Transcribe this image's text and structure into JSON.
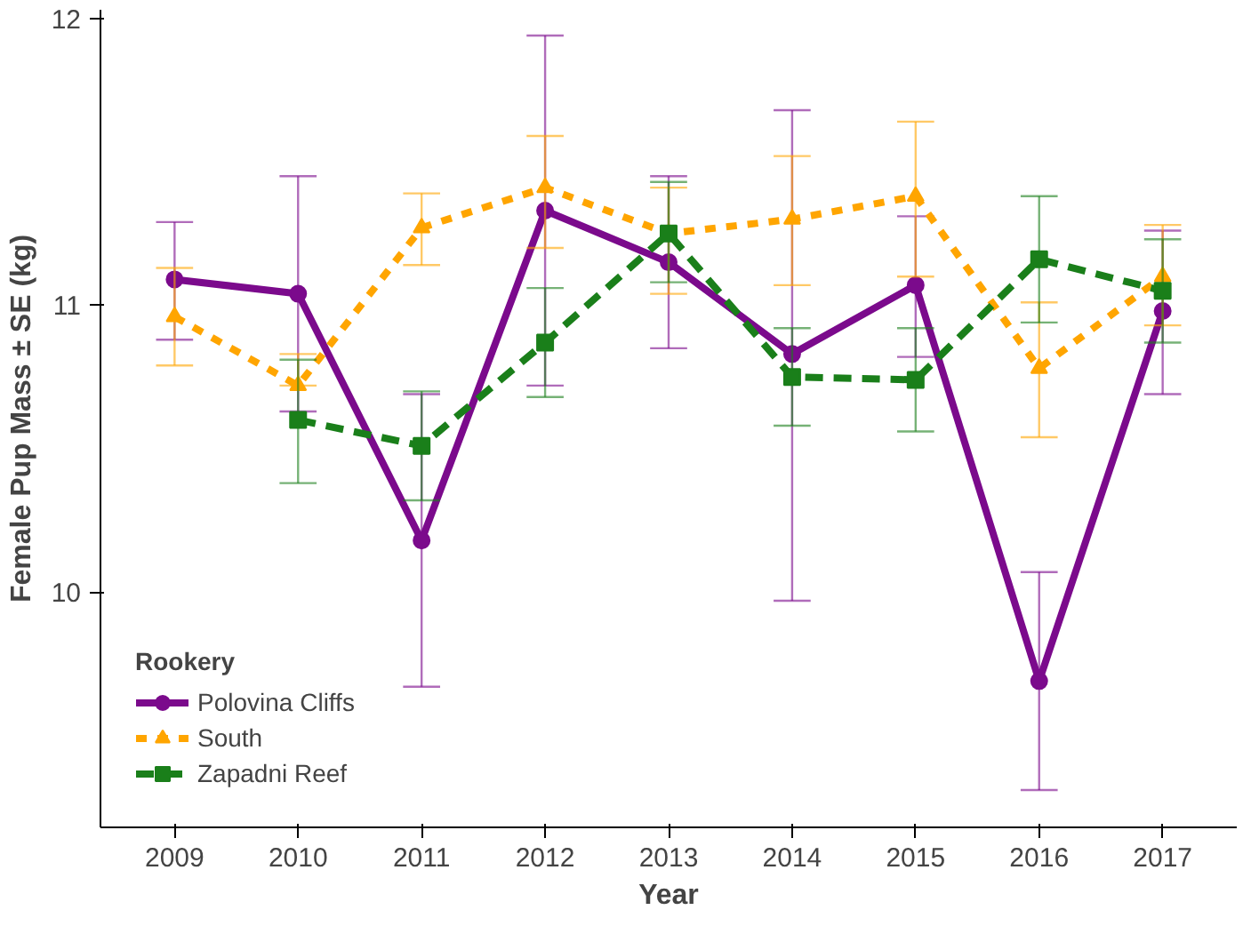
{
  "chart_data": {
    "type": "line",
    "xlabel": "Year",
    "ylabel": "Female Pup Mass ± SE (kg)",
    "legend_title": "Rookery",
    "categories": [
      "2009",
      "2010",
      "2011",
      "2012",
      "2013",
      "2014",
      "2015",
      "2016",
      "2017"
    ],
    "ylim": [
      9.18,
      12.03
    ],
    "yticks": [
      10,
      11,
      12
    ],
    "grid": false,
    "legend": "bottom left",
    "series": [
      {
        "name": "Polovina Cliffs",
        "color": "#7b0a8c",
        "marker": "circle",
        "line_style": "solid",
        "values": [
          11.09,
          11.04,
          10.18,
          11.33,
          11.15,
          10.83,
          11.07,
          9.69,
          10.98
        ],
        "errors": [
          [
            10.88,
            11.29
          ],
          [
            10.63,
            11.45
          ],
          [
            9.67,
            10.69
          ],
          [
            10.72,
            11.94
          ],
          [
            10.85,
            11.45
          ],
          [
            9.97,
            11.68
          ],
          [
            10.82,
            11.31
          ],
          [
            9.31,
            10.07
          ],
          [
            10.69,
            11.26
          ]
        ]
      },
      {
        "name": "South",
        "color": "#ffa500",
        "marker": "triangle",
        "line_style": "dotted",
        "values": [
          10.96,
          10.72,
          11.27,
          11.41,
          11.25,
          11.3,
          11.38,
          10.78,
          11.1
        ],
        "errors": [
          [
            10.79,
            11.13
          ],
          [
            10.72,
            10.83
          ],
          [
            11.14,
            11.39
          ],
          [
            11.2,
            11.59
          ],
          [
            11.04,
            11.41
          ],
          [
            11.07,
            11.52
          ],
          [
            11.1,
            11.64
          ],
          [
            10.54,
            11.01
          ],
          [
            10.93,
            11.28
          ]
        ]
      },
      {
        "name": "Zapadni Reef",
        "color": "#1a7f1a",
        "marker": "square",
        "line_style": "dashed",
        "values": [
          null,
          10.6,
          10.51,
          10.87,
          11.25,
          10.75,
          10.74,
          11.16,
          11.05
        ],
        "errors": [
          null,
          [
            10.38,
            10.81
          ],
          [
            10.32,
            10.7
          ],
          [
            10.68,
            11.06
          ],
          [
            11.08,
            11.43
          ],
          [
            10.58,
            10.92
          ],
          [
            10.56,
            10.92
          ],
          [
            10.94,
            11.38
          ],
          [
            10.87,
            11.23
          ]
        ]
      }
    ]
  }
}
